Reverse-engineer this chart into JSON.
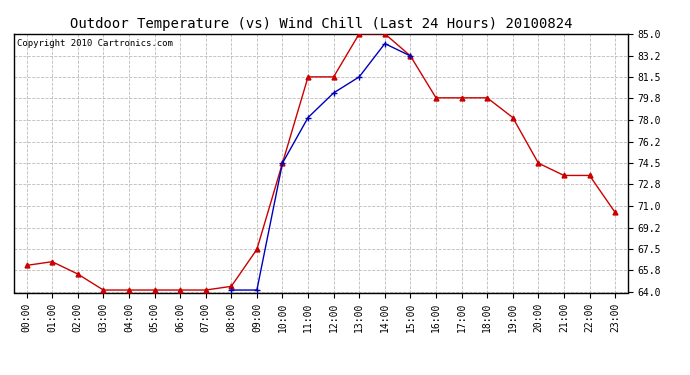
{
  "title": "Outdoor Temperature (vs) Wind Chill (Last 24 Hours) 20100824",
  "copyright_text": "Copyright 2010 Cartronics.com",
  "x_labels": [
    "00:00",
    "01:00",
    "02:00",
    "03:00",
    "04:00",
    "05:00",
    "06:00",
    "07:00",
    "08:00",
    "09:00",
    "10:00",
    "11:00",
    "12:00",
    "13:00",
    "14:00",
    "15:00",
    "16:00",
    "17:00",
    "18:00",
    "19:00",
    "20:00",
    "21:00",
    "22:00",
    "23:00"
  ],
  "temp_red": [
    66.2,
    66.5,
    65.5,
    64.2,
    64.2,
    64.2,
    64.2,
    64.2,
    64.5,
    67.5,
    74.5,
    81.5,
    81.5,
    85.0,
    85.0,
    83.2,
    79.8,
    79.8,
    79.8,
    78.2,
    74.5,
    73.5,
    73.5,
    70.5
  ],
  "wind_blue": [
    null,
    null,
    null,
    null,
    null,
    null,
    null,
    null,
    64.2,
    64.2,
    74.5,
    78.2,
    80.2,
    81.5,
    84.2,
    83.2,
    null,
    null,
    null,
    null,
    null,
    null,
    null,
    null
  ],
  "ylim": [
    64.0,
    85.0
  ],
  "yticks": [
    64.0,
    65.8,
    67.5,
    69.2,
    71.0,
    72.8,
    74.5,
    76.2,
    78.0,
    79.8,
    81.5,
    83.2,
    85.0
  ],
  "red_color": "#cc0000",
  "blue_color": "#0000bb",
  "grid_color": "#bbbbbb",
  "bg_color": "#ffffff",
  "plot_bg_color": "#ffffff",
  "title_fontsize": 10,
  "tick_fontsize": 7,
  "copyright_fontsize": 6.5
}
